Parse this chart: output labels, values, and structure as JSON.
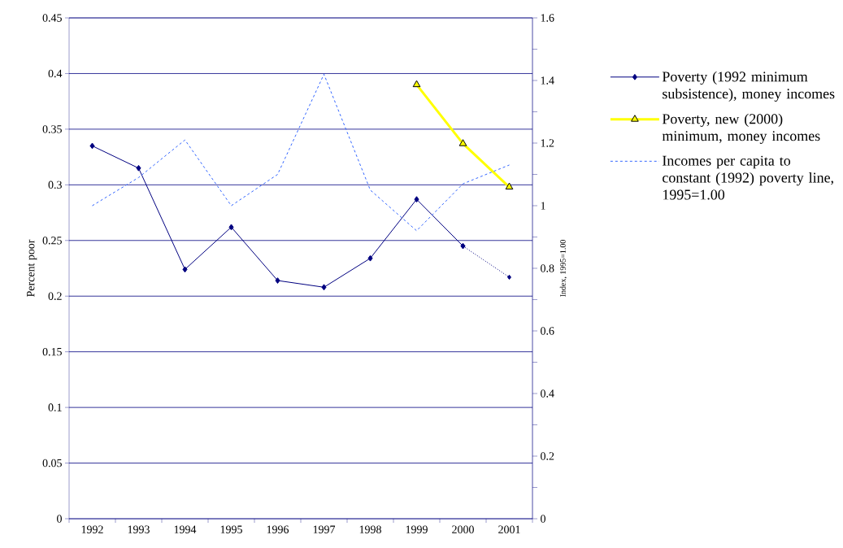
{
  "chart_data": {
    "type": "line",
    "ylabel": "Percent poor",
    "y2label": "Index, 1995=1.00",
    "categories": [
      "1992",
      "1993",
      "1994",
      "1995",
      "1996",
      "1997",
      "1998",
      "1999",
      "2000",
      "2001"
    ],
    "ylim": [
      0,
      0.45
    ],
    "yticks": [
      0,
      0.05,
      0.1,
      0.15,
      0.2,
      0.25,
      0.3,
      0.35,
      0.4,
      0.45
    ],
    "y2lim": [
      0,
      1.6
    ],
    "y2ticks": [
      0,
      {
        "value": 0.1,
        "label": null
      },
      0.2,
      {
        "value": 0.3,
        "label": null
      },
      0.4,
      {
        "value": 0.5,
        "label": null
      },
      0.6,
      {
        "value": 0.7,
        "label": null
      },
      0.8,
      {
        "value": 0.9,
        "label": null
      },
      1,
      {
        "value": 1.1,
        "label": null
      },
      1.2,
      {
        "value": 1.3,
        "label": null
      },
      1.4,
      {
        "value": 1.5,
        "label": null
      },
      1.6
    ],
    "grid": "y",
    "legend": "right",
    "series": [
      {
        "name": "Poverty (1992 minimum subsistence), money incomes",
        "color": "#000080",
        "marker": "diamond",
        "line_style": "solid",
        "values": [
          0.335,
          0.315,
          0.224,
          0.262,
          0.214,
          0.208,
          0.234,
          0.287,
          0.245,
          null
        ]
      },
      {
        "name": "Poverty, new (2000) minimum, money incomes",
        "color": "#ffff00",
        "marker": "triangle",
        "line_style": "solid",
        "values": [
          null,
          null,
          null,
          null,
          null,
          null,
          null,
          0.39,
          0.337,
          0.298
        ]
      },
      {
        "name": "Incomes per capita to constant (1992) poverty line, 1995=1.00",
        "color": "#3366ff",
        "marker": "none",
        "line_style": "dashed",
        "axis": "y2",
        "values": [
          1.0,
          1.09,
          1.21,
          1.0,
          1.1,
          1.42,
          1.05,
          0.92,
          1.07,
          1.13
        ]
      },
      {
        "color": "#000080",
        "marker": "diamond",
        "line_style": "dotted",
        "values": [
          null,
          null,
          null,
          null,
          null,
          null,
          null,
          null,
          0.245,
          0.217
        ]
      }
    ]
  }
}
